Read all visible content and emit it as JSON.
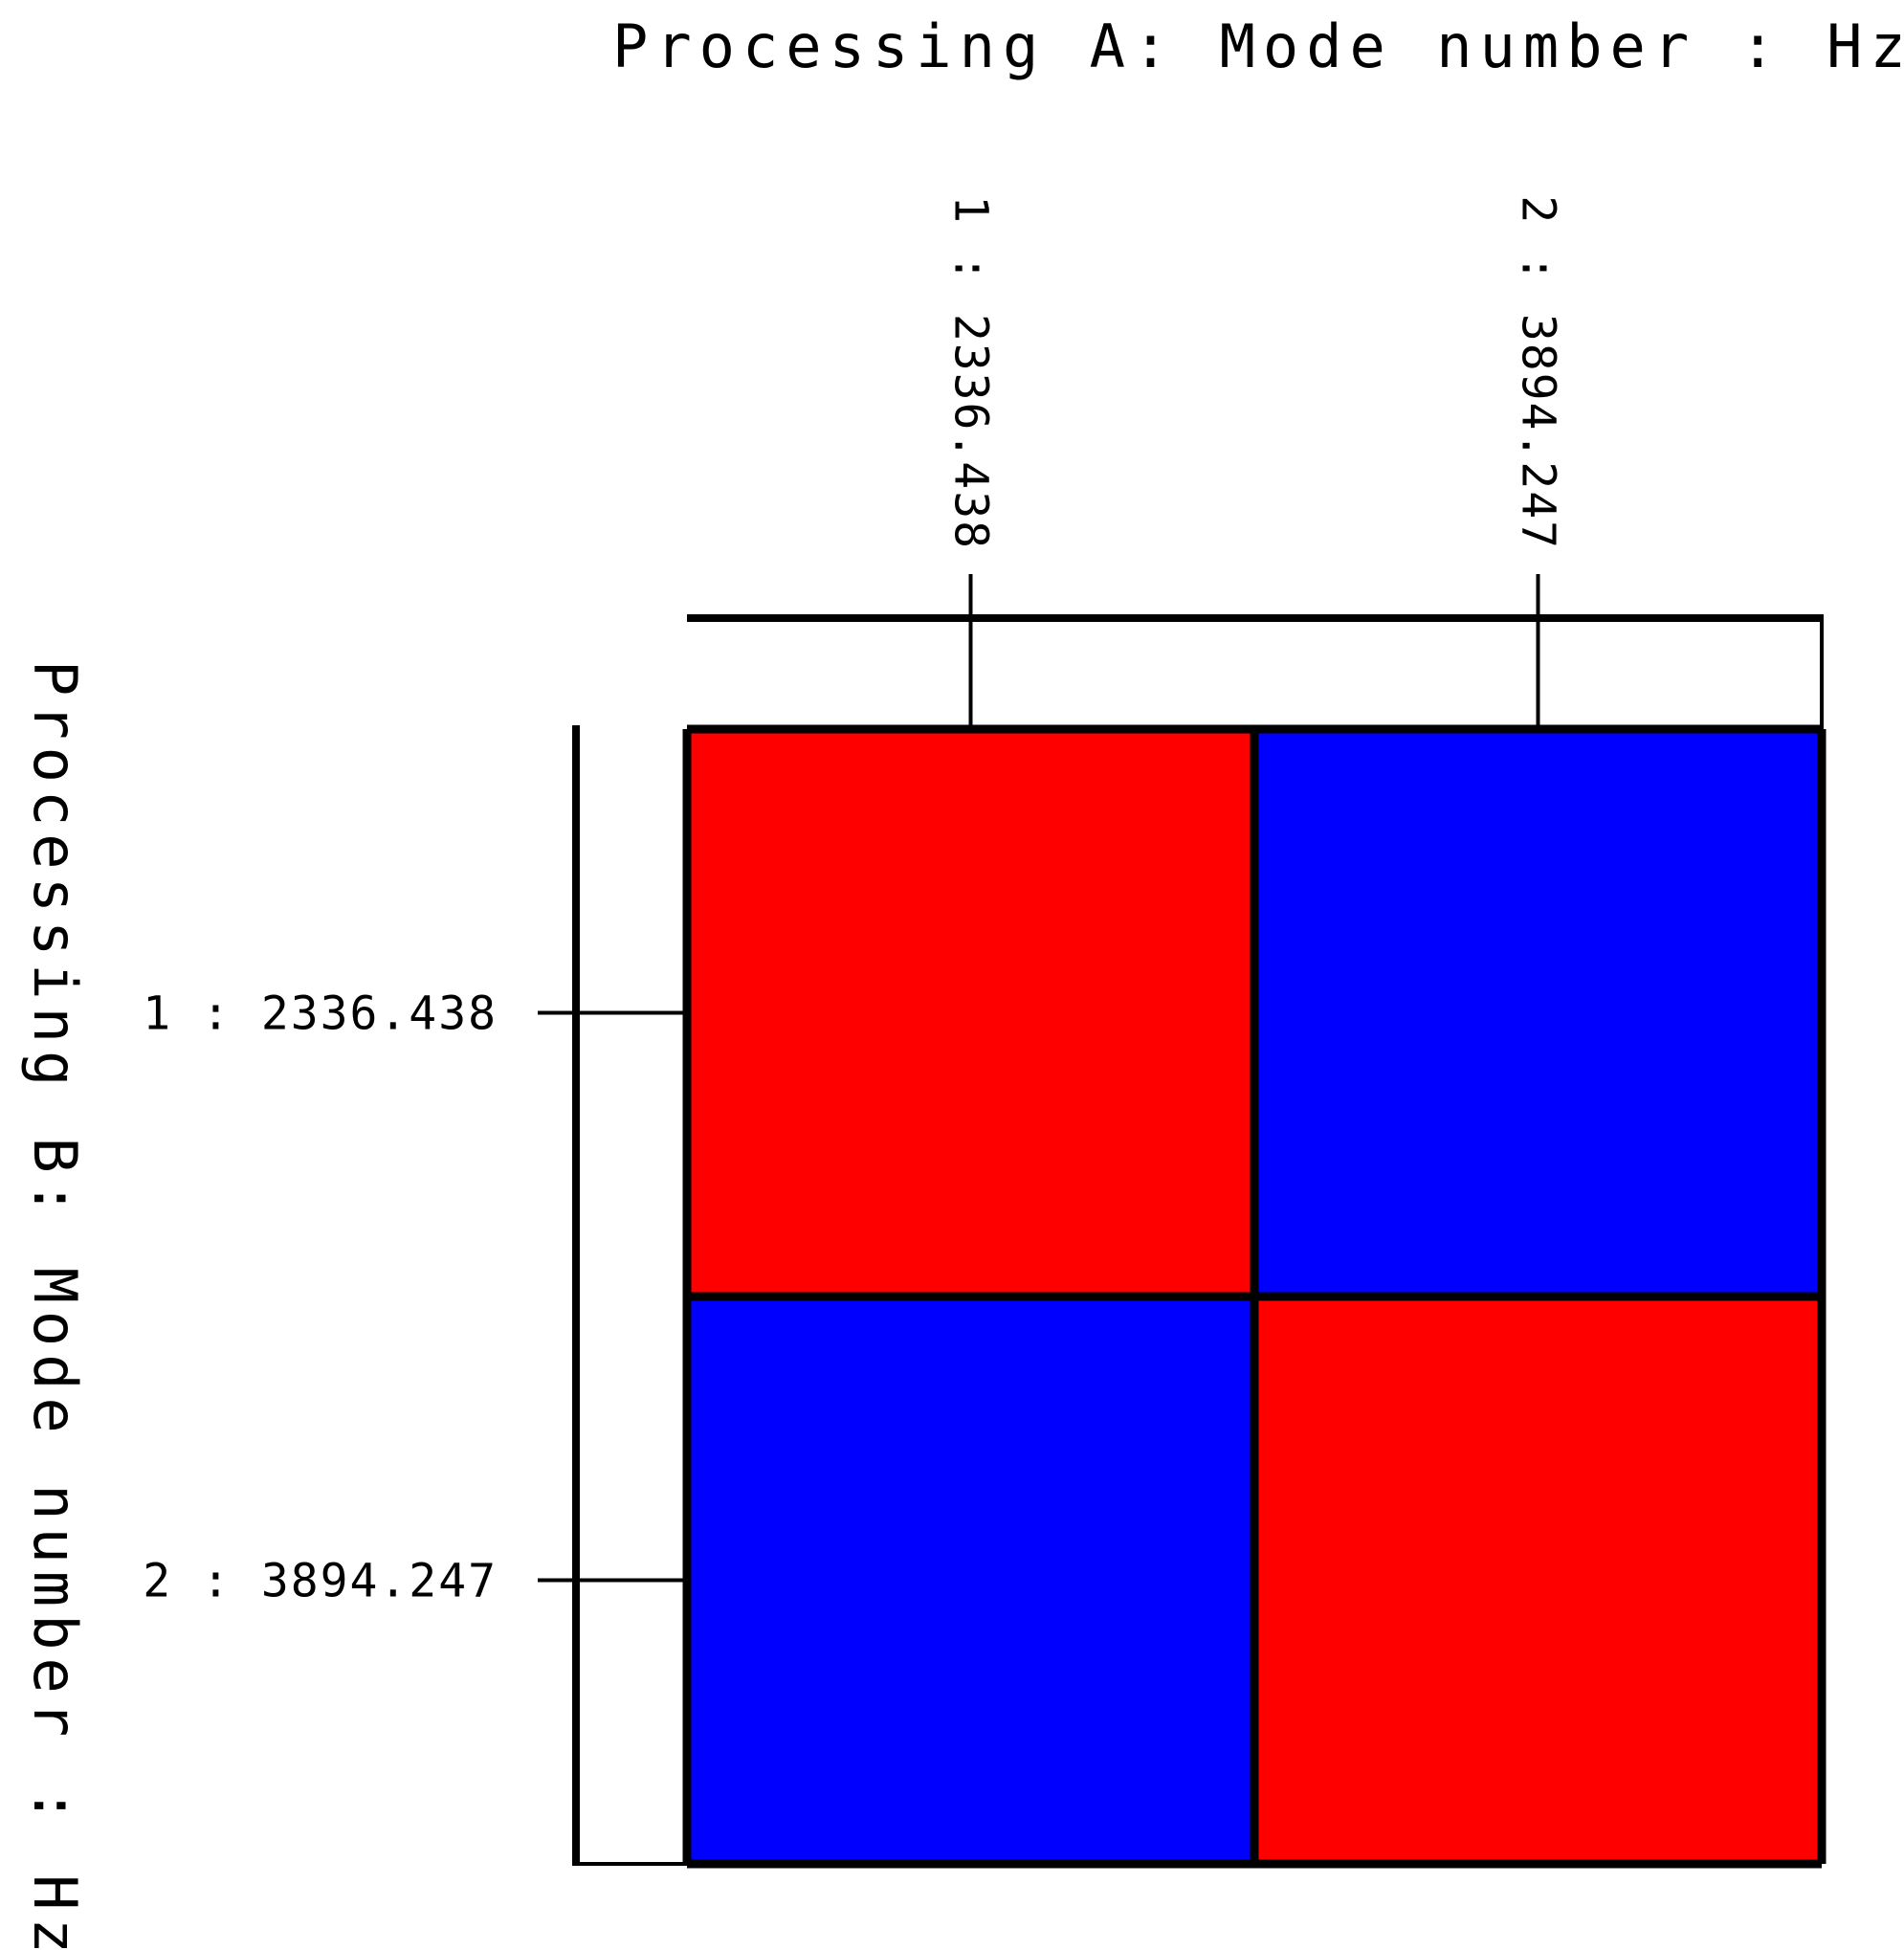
{
  "chart_data": {
    "type": "heatmap",
    "xlabel": "Processing A: Mode number : Hz",
    "ylabel": "Processing B: Mode number : Hz",
    "x_categories": [
      "1 : 2336.438",
      "2 : 3894.247"
    ],
    "y_categories": [
      "1 : 2336.438",
      "2 : 3894.247"
    ],
    "matrix": [
      [
        1,
        0
      ],
      [
        0,
        1
      ]
    ],
    "colors": {
      "high": "#ff0000",
      "low": "#0000ff",
      "line": "#000000"
    },
    "grid": true,
    "legend": "none"
  }
}
